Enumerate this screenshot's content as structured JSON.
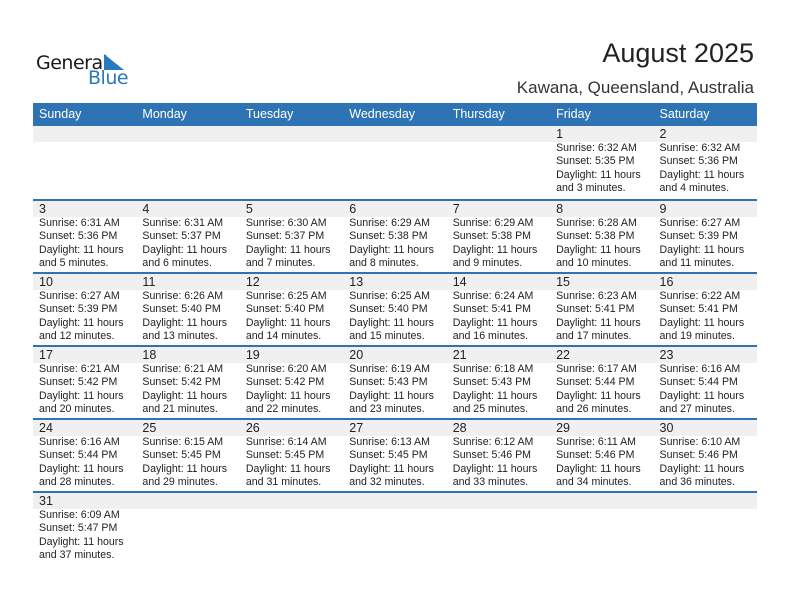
{
  "logo": {
    "general": "General",
    "blue": "Blue"
  },
  "header": {
    "title": "August 2025",
    "location": "Kawana, Queensland, Australia"
  },
  "colors": {
    "accent": "#2e74b5",
    "strip": "#f0f0f0"
  },
  "weekdays": [
    "Sunday",
    "Monday",
    "Tuesday",
    "Wednesday",
    "Thursday",
    "Friday",
    "Saturday"
  ],
  "weeks": [
    [
      null,
      null,
      null,
      null,
      null,
      {
        "day": "1",
        "lines": [
          "Sunrise: 6:32 AM",
          "Sunset: 5:35 PM",
          "Daylight: 11 hours",
          "and 3 minutes."
        ]
      },
      {
        "day": "2",
        "lines": [
          "Sunrise: 6:32 AM",
          "Sunset: 5:36 PM",
          "Daylight: 11 hours",
          "and 4 minutes."
        ]
      }
    ],
    [
      {
        "day": "3",
        "lines": [
          "Sunrise: 6:31 AM",
          "Sunset: 5:36 PM",
          "Daylight: 11 hours",
          "and 5 minutes."
        ]
      },
      {
        "day": "4",
        "lines": [
          "Sunrise: 6:31 AM",
          "Sunset: 5:37 PM",
          "Daylight: 11 hours",
          "and 6 minutes."
        ]
      },
      {
        "day": "5",
        "lines": [
          "Sunrise: 6:30 AM",
          "Sunset: 5:37 PM",
          "Daylight: 11 hours",
          "and 7 minutes."
        ]
      },
      {
        "day": "6",
        "lines": [
          "Sunrise: 6:29 AM",
          "Sunset: 5:38 PM",
          "Daylight: 11 hours",
          "and 8 minutes."
        ]
      },
      {
        "day": "7",
        "lines": [
          "Sunrise: 6:29 AM",
          "Sunset: 5:38 PM",
          "Daylight: 11 hours",
          "and 9 minutes."
        ]
      },
      {
        "day": "8",
        "lines": [
          "Sunrise: 6:28 AM",
          "Sunset: 5:38 PM",
          "Daylight: 11 hours",
          "and 10 minutes."
        ]
      },
      {
        "day": "9",
        "lines": [
          "Sunrise: 6:27 AM",
          "Sunset: 5:39 PM",
          "Daylight: 11 hours",
          "and 11 minutes."
        ]
      }
    ],
    [
      {
        "day": "10",
        "lines": [
          "Sunrise: 6:27 AM",
          "Sunset: 5:39 PM",
          "Daylight: 11 hours",
          "and 12 minutes."
        ]
      },
      {
        "day": "11",
        "lines": [
          "Sunrise: 6:26 AM",
          "Sunset: 5:40 PM",
          "Daylight: 11 hours",
          "and 13 minutes."
        ]
      },
      {
        "day": "12",
        "lines": [
          "Sunrise: 6:25 AM",
          "Sunset: 5:40 PM",
          "Daylight: 11 hours",
          "and 14 minutes."
        ]
      },
      {
        "day": "13",
        "lines": [
          "Sunrise: 6:25 AM",
          "Sunset: 5:40 PM",
          "Daylight: 11 hours",
          "and 15 minutes."
        ]
      },
      {
        "day": "14",
        "lines": [
          "Sunrise: 6:24 AM",
          "Sunset: 5:41 PM",
          "Daylight: 11 hours",
          "and 16 minutes."
        ]
      },
      {
        "day": "15",
        "lines": [
          "Sunrise: 6:23 AM",
          "Sunset: 5:41 PM",
          "Daylight: 11 hours",
          "and 17 minutes."
        ]
      },
      {
        "day": "16",
        "lines": [
          "Sunrise: 6:22 AM",
          "Sunset: 5:41 PM",
          "Daylight: 11 hours",
          "and 19 minutes."
        ]
      }
    ],
    [
      {
        "day": "17",
        "lines": [
          "Sunrise: 6:21 AM",
          "Sunset: 5:42 PM",
          "Daylight: 11 hours",
          "and 20 minutes."
        ]
      },
      {
        "day": "18",
        "lines": [
          "Sunrise: 6:21 AM",
          "Sunset: 5:42 PM",
          "Daylight: 11 hours",
          "and 21 minutes."
        ]
      },
      {
        "day": "19",
        "lines": [
          "Sunrise: 6:20 AM",
          "Sunset: 5:42 PM",
          "Daylight: 11 hours",
          "and 22 minutes."
        ]
      },
      {
        "day": "20",
        "lines": [
          "Sunrise: 6:19 AM",
          "Sunset: 5:43 PM",
          "Daylight: 11 hours",
          "and 23 minutes."
        ]
      },
      {
        "day": "21",
        "lines": [
          "Sunrise: 6:18 AM",
          "Sunset: 5:43 PM",
          "Daylight: 11 hours",
          "and 25 minutes."
        ]
      },
      {
        "day": "22",
        "lines": [
          "Sunrise: 6:17 AM",
          "Sunset: 5:44 PM",
          "Daylight: 11 hours",
          "and 26 minutes."
        ]
      },
      {
        "day": "23",
        "lines": [
          "Sunrise: 6:16 AM",
          "Sunset: 5:44 PM",
          "Daylight: 11 hours",
          "and 27 minutes."
        ]
      }
    ],
    [
      {
        "day": "24",
        "lines": [
          "Sunrise: 6:16 AM",
          "Sunset: 5:44 PM",
          "Daylight: 11 hours",
          "and 28 minutes."
        ]
      },
      {
        "day": "25",
        "lines": [
          "Sunrise: 6:15 AM",
          "Sunset: 5:45 PM",
          "Daylight: 11 hours",
          "and 29 minutes."
        ]
      },
      {
        "day": "26",
        "lines": [
          "Sunrise: 6:14 AM",
          "Sunset: 5:45 PM",
          "Daylight: 11 hours",
          "and 31 minutes."
        ]
      },
      {
        "day": "27",
        "lines": [
          "Sunrise: 6:13 AM",
          "Sunset: 5:45 PM",
          "Daylight: 11 hours",
          "and 32 minutes."
        ]
      },
      {
        "day": "28",
        "lines": [
          "Sunrise: 6:12 AM",
          "Sunset: 5:46 PM",
          "Daylight: 11 hours",
          "and 33 minutes."
        ]
      },
      {
        "day": "29",
        "lines": [
          "Sunrise: 6:11 AM",
          "Sunset: 5:46 PM",
          "Daylight: 11 hours",
          "and 34 minutes."
        ]
      },
      {
        "day": "30",
        "lines": [
          "Sunrise: 6:10 AM",
          "Sunset: 5:46 PM",
          "Daylight: 11 hours",
          "and 36 minutes."
        ]
      }
    ],
    [
      {
        "day": "31",
        "lines": [
          "Sunrise: 6:09 AM",
          "Sunset: 5:47 PM",
          "Daylight: 11 hours",
          "and 37 minutes."
        ]
      },
      null,
      null,
      null,
      null,
      null,
      null
    ]
  ]
}
